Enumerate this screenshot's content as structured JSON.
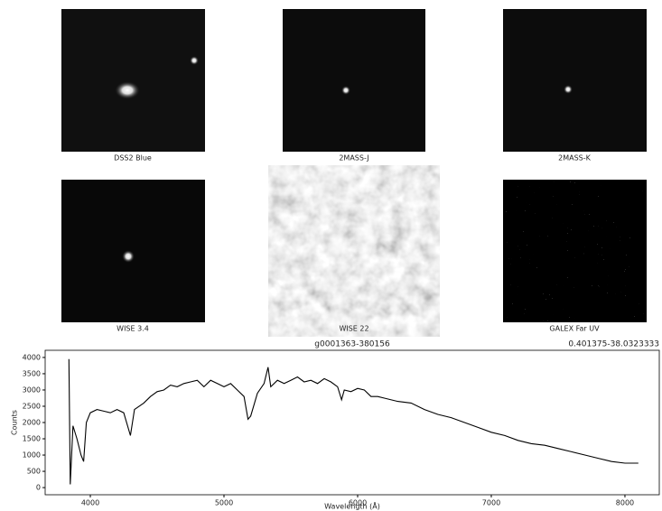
{
  "panels": [
    {
      "label": "DSS2 Blue"
    },
    {
      "label": "2MASS-J"
    },
    {
      "label": "2MASS-K"
    },
    {
      "label": "WISE 3.4"
    },
    {
      "label": "WISE 22"
    },
    {
      "label": "GALEX Far UV"
    }
  ],
  "chart_data": {
    "type": "line",
    "title": "g0001363-380156",
    "subtitle": "0.401375-38.0323333",
    "x_label": "Wavelength (Å)",
    "y_label": "Counts",
    "xlim": [
      3662,
      8257
    ],
    "ylim": [
      -220,
      4220
    ],
    "xticks": [
      4000,
      5000,
      6000,
      7000,
      8000
    ],
    "yticks": [
      0,
      500,
      1000,
      1500,
      2000,
      2500,
      3000,
      3500,
      4000
    ],
    "series": [
      {
        "color": "#000000",
        "x": [
          3840,
          3850,
          3870,
          3900,
          3930,
          3950,
          3970,
          4000,
          4050,
          4100,
          4150,
          4200,
          4250,
          4300,
          4330,
          4400,
          4450,
          4500,
          4550,
          4600,
          4650,
          4700,
          4750,
          4800,
          4850,
          4900,
          4950,
          5000,
          5050,
          5100,
          5150,
          5180,
          5200,
          5250,
          5300,
          5330,
          5350,
          5400,
          5450,
          5500,
          5550,
          5600,
          5650,
          5700,
          5750,
          5800,
          5850,
          5880,
          5900,
          5950,
          6000,
          6050,
          6100,
          6150,
          6200,
          6300,
          6400,
          6500,
          6600,
          6700,
          6800,
          6900,
          7000,
          7100,
          7200,
          7300,
          7400,
          7500,
          7600,
          7700,
          7800,
          7900,
          8000,
          8100
        ],
        "values": [
          3950,
          100,
          1900,
          1500,
          1000,
          800,
          2000,
          2300,
          2400,
          2350,
          2300,
          2400,
          2300,
          1600,
          2400,
          2600,
          2800,
          2950,
          3000,
          3150,
          3100,
          3200,
          3250,
          3300,
          3100,
          3300,
          3200,
          3100,
          3200,
          3000,
          2800,
          2100,
          2200,
          2900,
          3200,
          3700,
          3100,
          3300,
          3200,
          3300,
          3400,
          3250,
          3300,
          3200,
          3350,
          3250,
          3100,
          2700,
          3000,
          2950,
          3050,
          3000,
          2800,
          2800,
          2750,
          2650,
          2600,
          2400,
          2250,
          2150,
          2000,
          1850,
          1700,
          1600,
          1450,
          1350,
          1300,
          1200,
          1100,
          1000,
          900,
          800,
          750,
          750
        ]
      }
    ]
  }
}
